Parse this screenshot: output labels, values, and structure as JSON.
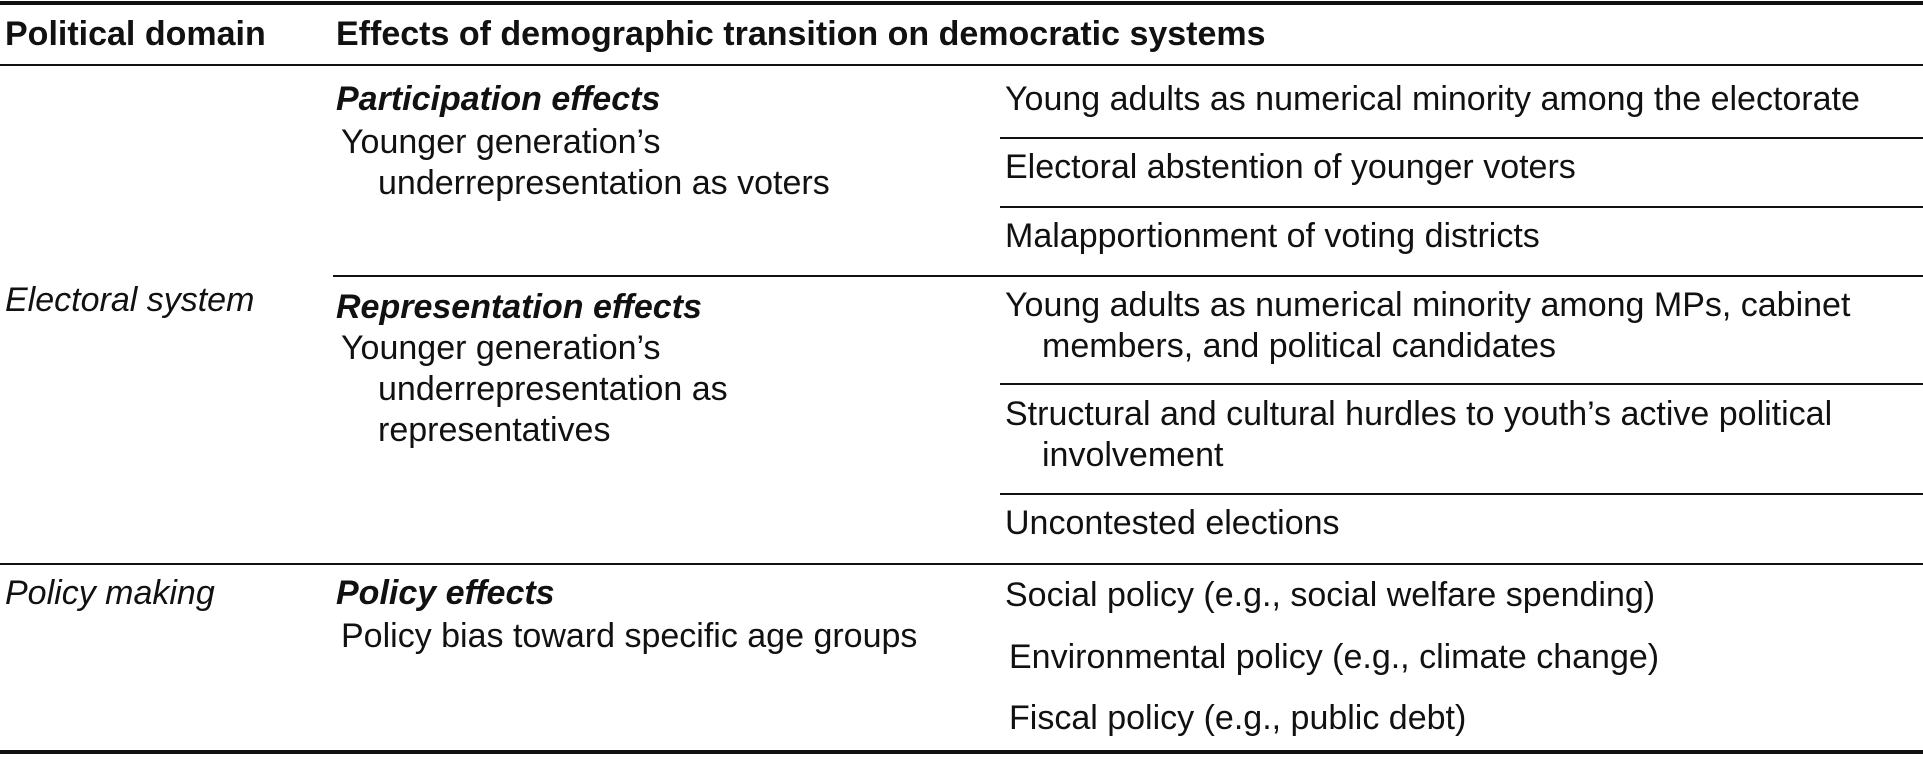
{
  "header": {
    "col1": "Political domain",
    "col2": "Effects of demographic transition on democratic systems"
  },
  "domains": {
    "electoral": "Electoral system",
    "policy": "Policy making"
  },
  "participation": {
    "heading": "Participation effects",
    "desc_line1": "Younger generation’s",
    "desc_line2": "underrepresentation as voters",
    "items": [
      "Young adults as numerical minority among the electorate",
      "Electoral abstention of younger voters",
      "Malapportionment of voting districts"
    ]
  },
  "representation": {
    "heading": "Representation effects",
    "desc_line1": "Younger generation’s",
    "desc_line2": "underrepresentation as",
    "desc_line3": "representatives",
    "item1_line1": "Young adults as numerical minority among MPs, cabinet",
    "item1_line2": "members, and political candidates",
    "item2_line1": "Structural and cultural hurdles to youth’s active political",
    "item2_line2": "involvement",
    "item3": "Uncontested elections"
  },
  "policy_effects": {
    "heading": "Policy effects",
    "desc": "Policy bias toward specific age groups",
    "items": [
      "Social policy (e.g., social welfare spending)",
      "Environmental policy (e.g., climate change)",
      "Fiscal policy (e.g., public debt)"
    ]
  }
}
